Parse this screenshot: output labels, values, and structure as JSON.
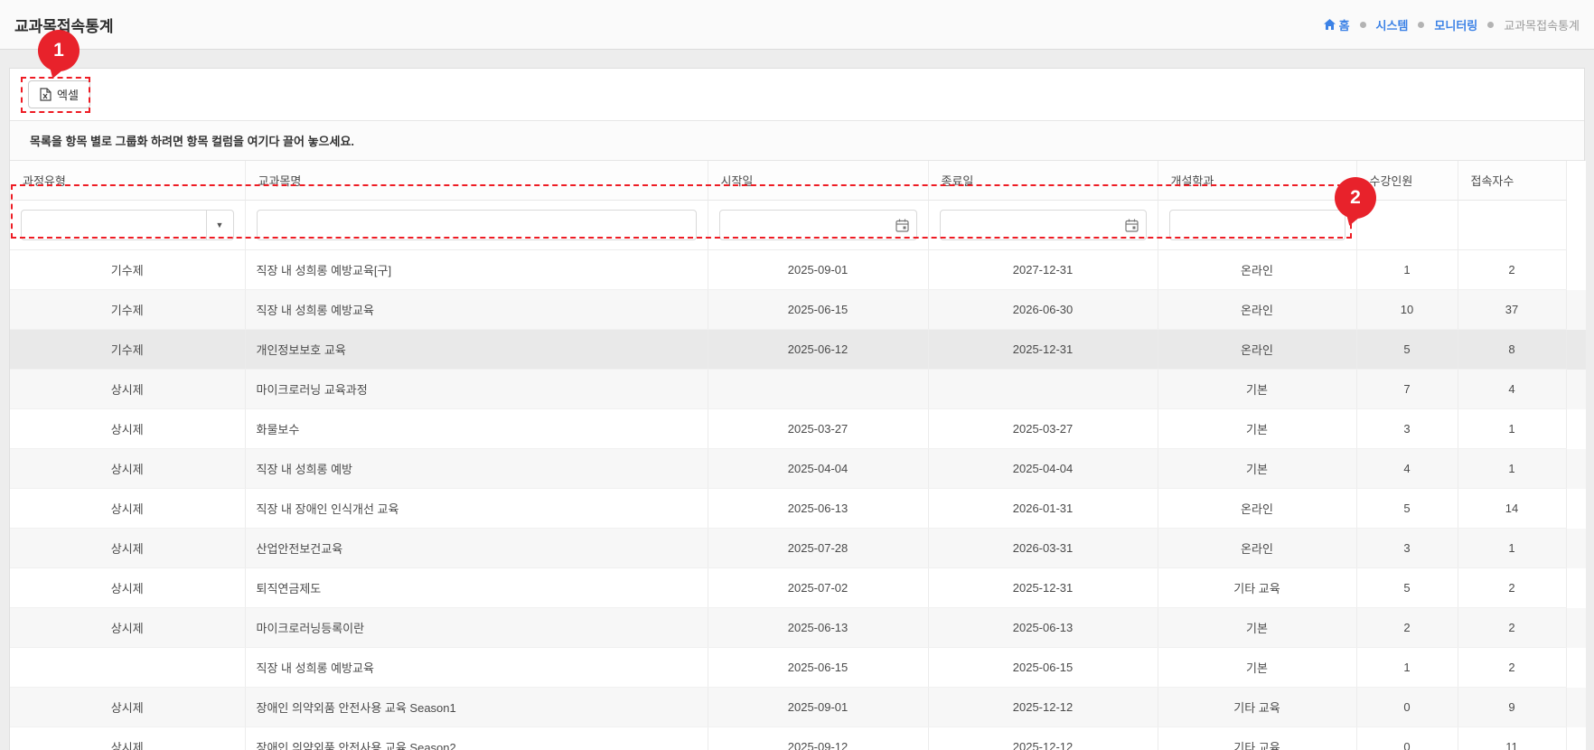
{
  "page": {
    "title": "교과목접속통계"
  },
  "breadcrumb": {
    "items": [
      {
        "label": "홈",
        "icon": "home",
        "active": false
      },
      {
        "label": "시스템",
        "icon": "",
        "active": false
      },
      {
        "label": "모니터링",
        "icon": "",
        "active": false
      },
      {
        "label": "교과목접속통계",
        "icon": "",
        "active": true
      }
    ]
  },
  "toolbar": {
    "excel_label": "엑셀",
    "excel_icon": "excel-file-icon"
  },
  "group_panel": {
    "hint": "목록을 항목 별로 그룹화 하려면 항목 컬럼을 여기다 끌어 놓으세요."
  },
  "table": {
    "columns": [
      {
        "key": "type",
        "label": "과정유형",
        "filter": "dropdown",
        "align": "center"
      },
      {
        "key": "name",
        "label": "교과목명",
        "filter": "text",
        "align": "left"
      },
      {
        "key": "start",
        "label": "시작일",
        "filter": "date",
        "align": "center"
      },
      {
        "key": "end",
        "label": "종료일",
        "filter": "date",
        "align": "center"
      },
      {
        "key": "dept",
        "label": "개설학과",
        "filter": "text",
        "align": "center"
      },
      {
        "key": "enrolled",
        "label": "수강인원",
        "filter": "none",
        "align": "center"
      },
      {
        "key": "visits",
        "label": "접속자수",
        "filter": "none",
        "align": "center"
      }
    ],
    "filters": {
      "type_value": "",
      "name_value": "",
      "start_value": "",
      "end_value": "",
      "dept_value": ""
    },
    "rows": [
      {
        "type": "기수제",
        "name": "직장 내 성희롱 예방교육[구]",
        "start": "2025-09-01",
        "end": "2027-12-31",
        "dept": "온라인",
        "enrolled": "1",
        "visits": "2",
        "highlighted": false
      },
      {
        "type": "기수제",
        "name": "직장 내 성희롱 예방교육",
        "start": "2025-06-15",
        "end": "2026-06-30",
        "dept": "온라인",
        "enrolled": "10",
        "visits": "37",
        "highlighted": false
      },
      {
        "type": "기수제",
        "name": "개인정보보호 교육",
        "start": "2025-06-12",
        "end": "2025-12-31",
        "dept": "온라인",
        "enrolled": "5",
        "visits": "8",
        "highlighted": true
      },
      {
        "type": "상시제",
        "name": "마이크로러닝 교육과정",
        "start": "",
        "end": "",
        "dept": "기본",
        "enrolled": "7",
        "visits": "4",
        "highlighted": false
      },
      {
        "type": "상시제",
        "name": "화물보수",
        "start": "2025-03-27",
        "end": "2025-03-27",
        "dept": "기본",
        "enrolled": "3",
        "visits": "1",
        "highlighted": false
      },
      {
        "type": "상시제",
        "name": "직장 내 성희롱 예방",
        "start": "2025-04-04",
        "end": "2025-04-04",
        "dept": "기본",
        "enrolled": "4",
        "visits": "1",
        "highlighted": false
      },
      {
        "type": "상시제",
        "name": "직장 내 장애인 인식개선 교육",
        "start": "2025-06-13",
        "end": "2026-01-31",
        "dept": "온라인",
        "enrolled": "5",
        "visits": "14",
        "highlighted": false
      },
      {
        "type": "상시제",
        "name": "산업안전보건교육",
        "start": "2025-07-28",
        "end": "2026-03-31",
        "dept": "온라인",
        "enrolled": "3",
        "visits": "1",
        "highlighted": false
      },
      {
        "type": "상시제",
        "name": "퇴직연금제도",
        "start": "2025-07-02",
        "end": "2025-12-31",
        "dept": "기타 교육",
        "enrolled": "5",
        "visits": "2",
        "highlighted": false
      },
      {
        "type": "상시제",
        "name": "마이크로러닝등록이란",
        "start": "2025-06-13",
        "end": "2025-06-13",
        "dept": "기본",
        "enrolled": "2",
        "visits": "2",
        "highlighted": false
      },
      {
        "type": "",
        "name": "직장 내 성희롱 예방교육",
        "start": "2025-06-15",
        "end": "2025-06-15",
        "dept": "기본",
        "enrolled": "1",
        "visits": "2",
        "highlighted": false
      },
      {
        "type": "상시제",
        "name": "장애인 의약외품 안전사용 교육 Season1",
        "start": "2025-09-01",
        "end": "2025-12-12",
        "dept": "기타 교육",
        "enrolled": "0",
        "visits": "9",
        "highlighted": false
      },
      {
        "type": "상시제",
        "name": "장애인 의약외품 안전사용 교육 Season2",
        "start": "2025-09-12",
        "end": "2025-12-12",
        "dept": "기타 교육",
        "enrolled": "0",
        "visits": "11",
        "highlighted": false
      }
    ]
  },
  "annotations": {
    "badge1": "1",
    "badge2": "2",
    "accent_red": "#ee1c24"
  },
  "colors": {
    "breadcrumb_blue": "#3c82e6",
    "breadcrumb_muted": "#9b9b9b",
    "highlight_row": "#e9e9e9"
  }
}
